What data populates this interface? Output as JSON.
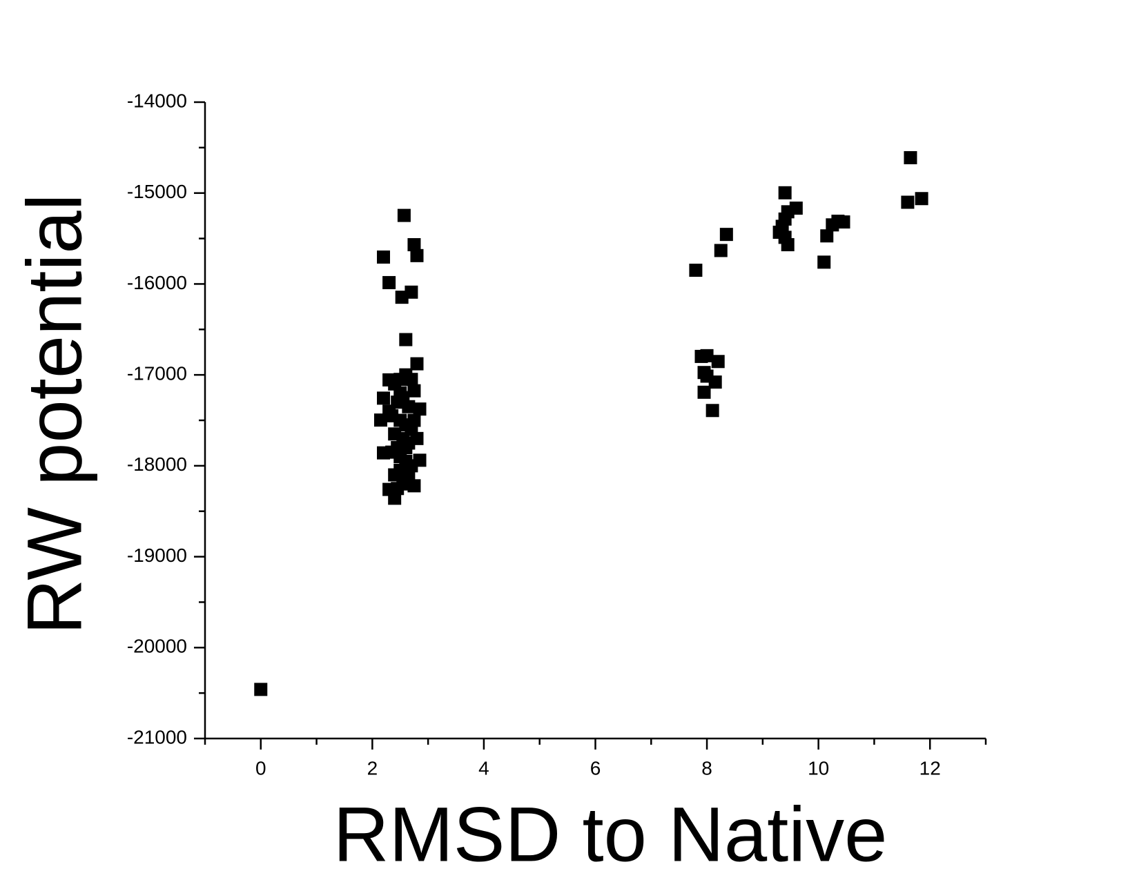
{
  "chart_data": {
    "type": "scatter",
    "x_label": "RMSD to Native",
    "y_label": "RW potential",
    "color": "#000000",
    "marker": "square",
    "xlim": [
      -1,
      13
    ],
    "xticks": [
      0,
      2,
      4,
      6,
      8,
      10,
      12
    ],
    "ylim": [
      -21000,
      -14000
    ],
    "yticks": [
      -14000,
      -15000,
      -16000,
      -17000,
      -18000,
      -19000,
      -20000,
      -21000
    ],
    "x": [
      0,
      2.2,
      2.57,
      2.3,
      2.53,
      2.7,
      2.75,
      2.8,
      2.6,
      2.8,
      2.4,
      2.3,
      2.2,
      2.15,
      2.2,
      2.3,
      2.85,
      2.75,
      2.85,
      2.75,
      2.4,
      2.5,
      2.6,
      2.7,
      2.45,
      2.55,
      2.65,
      2.35,
      2.5,
      2.6,
      2.7,
      2.4,
      2.55,
      2.65,
      2.45,
      2.35,
      2.5,
      2.6,
      2.7,
      2.8,
      2.5,
      2.4,
      2.6,
      2.55,
      2.45,
      2.65,
      2.3,
      2.75,
      2.5,
      2.6,
      7.8,
      7.9,
      8.0,
      8.2,
      7.95,
      8.0,
      8.15,
      7.95,
      8.1,
      8.25,
      8.35,
      9.4,
      9.45,
      9.4,
      9.6,
      9.3,
      9.4,
      9.45,
      9.35,
      10.1,
      10.15,
      10.25,
      10.35,
      10.45,
      11.65,
      11.6,
      11.85
    ],
    "values": [
      -20460,
      -15704,
      -15246,
      -15985,
      -16146,
      -16090,
      -15568,
      -15688,
      -16612,
      -16878,
      -18357,
      -18260,
      -17858,
      -17497,
      -17256,
      -17055,
      -17376,
      -17175,
      -17939,
      -18220,
      -17100,
      -17050,
      -17000,
      -17050,
      -17300,
      -17250,
      -17350,
      -17450,
      -17500,
      -17550,
      -17600,
      -17650,
      -17700,
      -17750,
      -17800,
      -17850,
      -17900,
      -17950,
      -18000,
      -17700,
      -18050,
      -18100,
      -18150,
      -18200,
      -18250,
      -18100,
      -17400,
      -17500,
      -17200,
      -17800,
      -15849,
      -16797,
      -16789,
      -16853,
      -16974,
      -17014,
      -17079,
      -17191,
      -17392,
      -15632,
      -15455,
      -14997,
      -15206,
      -15286,
      -15166,
      -15431,
      -15487,
      -15568,
      -15366,
      -15760,
      -15471,
      -15350,
      -15310,
      -15318,
      -14611,
      -15101,
      -15061
    ]
  }
}
